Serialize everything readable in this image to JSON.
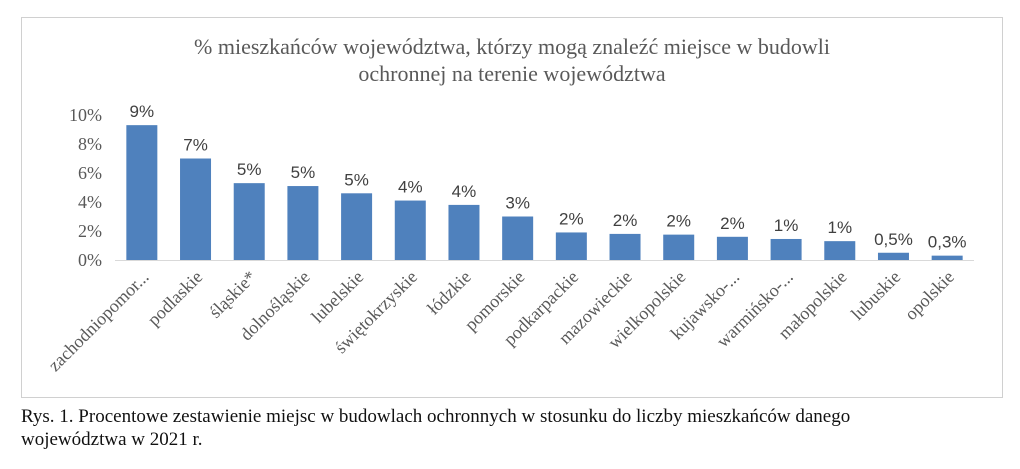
{
  "chart_data": {
    "type": "bar",
    "title": "% mieszkańców województwa, którzy mogą znaleźć miejsce w budowli ochronnej na terenie województwa",
    "title_lines": [
      "% mieszkańców województwa, którzy mogą znaleźć miejsce w budowli",
      "ochronnej na terenie województwa"
    ],
    "categories": [
      "zachodniopomor...",
      "podlaskie",
      "śląskie*",
      "dolnośląskie",
      "lubelskie",
      "świętokrzyskie",
      "łódzkie",
      "pomorskie",
      "podkarpackie",
      "mazowieckie",
      "wielkopolskie",
      "kujawsko-...",
      "warmińsko-...",
      "małopolskie",
      "lubuskie",
      "opolskie"
    ],
    "values": [
      9.3,
      7.0,
      5.3,
      5.1,
      4.6,
      4.1,
      3.8,
      3.0,
      1.9,
      1.8,
      1.75,
      1.6,
      1.45,
      1.3,
      0.5,
      0.3
    ],
    "data_labels": [
      "9%",
      "7%",
      "5%",
      "5%",
      "5%",
      "4%",
      "4%",
      "3%",
      "2%",
      "2%",
      "2%",
      "2%",
      "1%",
      "1%",
      "0,5%",
      "0,3%"
    ],
    "yticks": [
      "0%",
      "2%",
      "4%",
      "6%",
      "8%",
      "10%"
    ],
    "ylim": [
      0,
      10
    ],
    "grid": false,
    "bar_color": "#4f81bd",
    "xlabel": "",
    "ylabel": ""
  },
  "caption": {
    "line1": "Rys. 1. Procentowe zestawienie miejsc w budowlach ochronnych w stosunku do liczby mieszkańców danego",
    "line2": "województwa w 2021 r."
  }
}
